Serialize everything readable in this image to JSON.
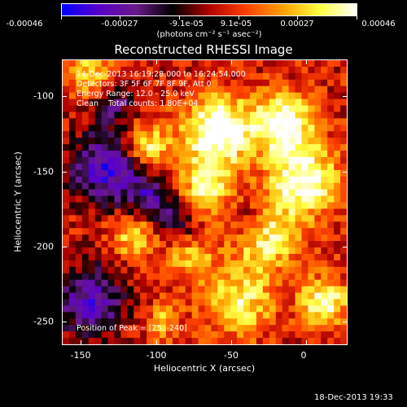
{
  "colorbar": {
    "tick_labels": [
      "-0.00046",
      "-0.00027",
      "-9.1e-05",
      "9.1e-05",
      "0.00027",
      "0.00046"
    ],
    "units": "(photons cm⁻² s⁻¹ asec⁻²)",
    "colors": [
      "#0000ff",
      "#5a00c8",
      "#6a1a8a",
      "#000000",
      "#b00000",
      "#ff4000",
      "#ffa000",
      "#ffff40",
      "#ffffff"
    ]
  },
  "title": "Reconstructed RHESSI Image",
  "info": {
    "line1": "14-Dec-2013 16:19:28.000 to 16:24:54.000",
    "line2": "Detectors: 3F 5F 6F 7F 8F 9F, Att 0",
    "line3": "Energy Range: 12.0 - 25.0 keV",
    "line4": "Clean    Total counts: 1.80E+04",
    "peak": "Position of Peak = [25.,-240]"
  },
  "x_axis": {
    "label": "Heliocentric X (arcsec)",
    "tick_labels": [
      "-150",
      "-100",
      "-50",
      "0"
    ]
  },
  "y_axis": {
    "label": "Heliocentric Y (arcsec)",
    "tick_labels": [
      "-100",
      "-150",
      "-200",
      "-250"
    ]
  },
  "timestamp": "18-Dec-2013 19:33"
}
